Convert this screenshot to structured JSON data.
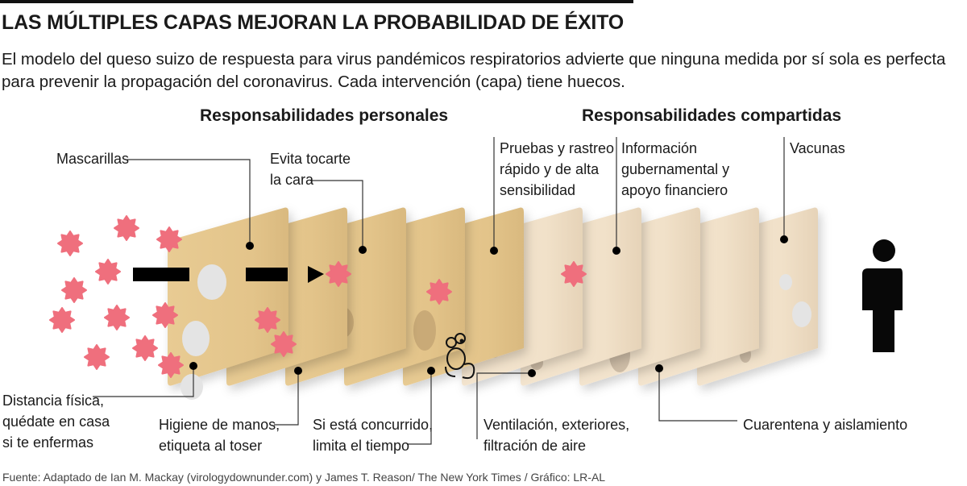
{
  "title": "LAS MÚLTIPLES CAPAS MEJORAN LA PROBABILIDAD DE ÉXITO",
  "subtitle": "El modelo del queso suizo de respuesta para virus pandémicos respiratorios advierte que ninguna medida por sí sola es perfecta para prevenir la propagación del coronavirus. Cada intervención (capa) tiene huecos.",
  "sections": {
    "personal": "Responsabilidades personales",
    "shared": "Responsabilidades compartidas"
  },
  "labels": {
    "masks": [
      "Mascarillas"
    ],
    "face": [
      "Evita tocarte",
      "la cara"
    ],
    "testing": [
      "Pruebas y rastreo",
      "rápido y de alta",
      "sensibilidad"
    ],
    "gov": [
      "Información",
      "gubernamental y",
      "apoyo financiero"
    ],
    "vaccines": [
      "Vacunas"
    ],
    "distance": [
      "Distancia física,",
      "quédate en casa",
      "si te enfermas"
    ],
    "hands": [
      "Higiene de manos,",
      "etiqueta al toser"
    ],
    "crowded": [
      "Si está concurrido,",
      "limita el tiempo"
    ],
    "ventilation": [
      "Ventilación, exteriores,",
      "filtración de aire"
    ],
    "quarantine": [
      "Cuarentena y aislamiento"
    ]
  },
  "source": "Fuente: Adaptado de Ian M. Mackay (virologydownunder.com) y James T. Reason/ The New York Times / Gráfico: LR-AL",
  "colors": {
    "personal_layer": "#e5c68d",
    "shared_layer": "#f2e2cb",
    "virus": "#ef6f7d",
    "ink": "#0a0a0a"
  },
  "icons": [
    "virus-icon",
    "arrow-icon",
    "mouse-icon",
    "person-icon"
  ]
}
